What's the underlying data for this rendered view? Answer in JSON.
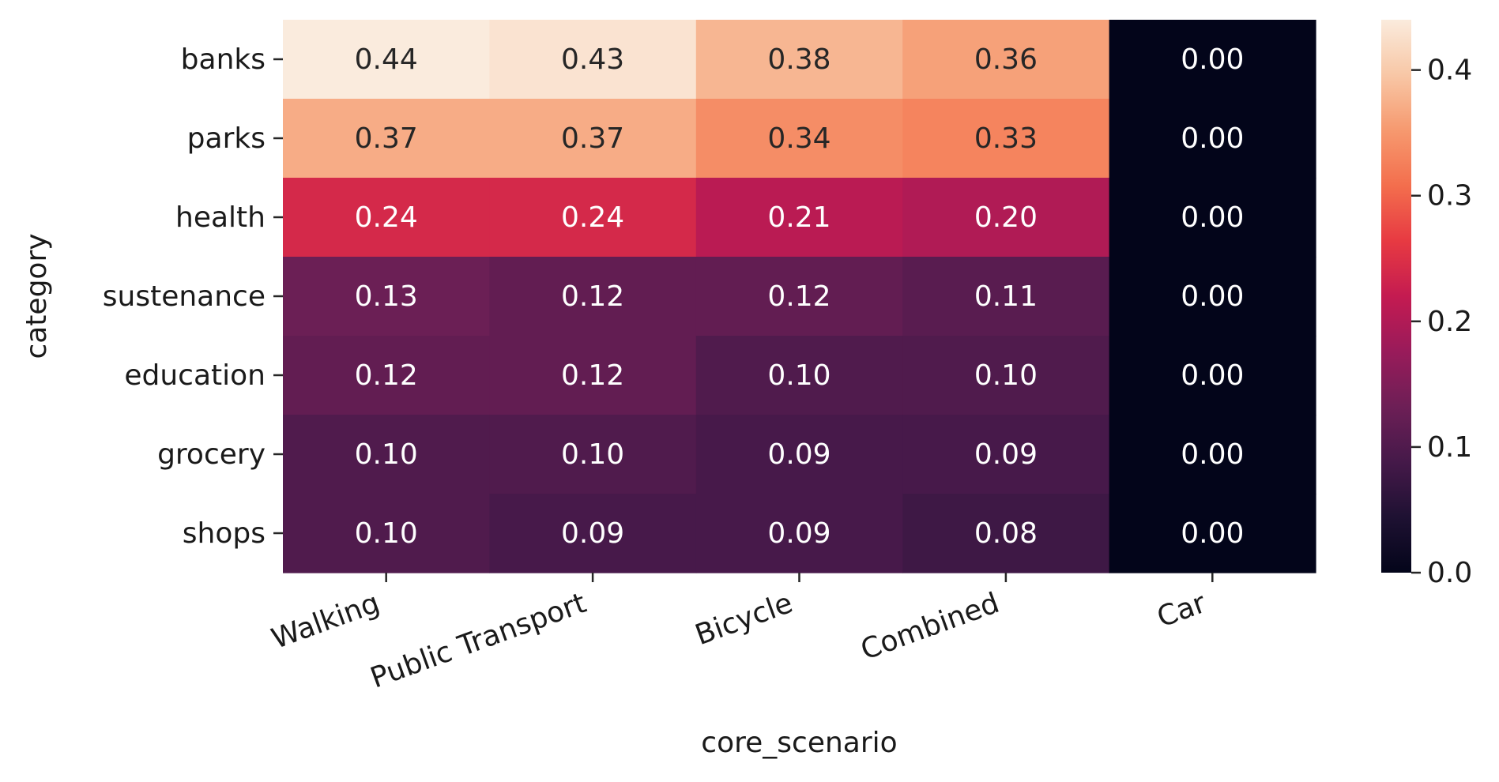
{
  "chart_data": {
    "type": "heatmap",
    "xlabel": "core_scenario",
    "ylabel": "category",
    "x_categories": [
      "Walking",
      "Public Transport",
      "Bicycle",
      "Combined",
      "Car"
    ],
    "y_categories": [
      "banks",
      "parks",
      "health",
      "sustenance",
      "education",
      "grocery",
      "shops"
    ],
    "values": [
      [
        0.44,
        0.43,
        0.38,
        0.36,
        0.0
      ],
      [
        0.37,
        0.37,
        0.34,
        0.33,
        0.0
      ],
      [
        0.24,
        0.24,
        0.21,
        0.2,
        0.0
      ],
      [
        0.13,
        0.12,
        0.12,
        0.11,
        0.0
      ],
      [
        0.12,
        0.12,
        0.1,
        0.1,
        0.0
      ],
      [
        0.1,
        0.1,
        0.09,
        0.09,
        0.0
      ],
      [
        0.1,
        0.09,
        0.09,
        0.08,
        0.0
      ]
    ],
    "cell_labels": [
      [
        "0.44",
        "0.43",
        "0.38",
        "0.36",
        "0.00"
      ],
      [
        "0.37",
        "0.37",
        "0.34",
        "0.33",
        "0.00"
      ],
      [
        "0.24",
        "0.24",
        "0.21",
        "0.20",
        "0.00"
      ],
      [
        "0.13",
        "0.12",
        "0.12",
        "0.11",
        "0.00"
      ],
      [
        "0.12",
        "0.12",
        "0.10",
        "0.10",
        "0.00"
      ],
      [
        "0.10",
        "0.10",
        "0.09",
        "0.09",
        "0.00"
      ],
      [
        "0.10",
        "0.09",
        "0.09",
        "0.08",
        "0.00"
      ]
    ],
    "colorbar": {
      "range": [
        0.0,
        0.44
      ],
      "ticks": [
        0.0,
        0.1,
        0.2,
        0.3,
        0.4
      ],
      "tick_labels": [
        "0.0",
        "0.1",
        "0.2",
        "0.3",
        "0.4"
      ],
      "colormap": "rocket",
      "placement": "right"
    },
    "grid": false
  }
}
